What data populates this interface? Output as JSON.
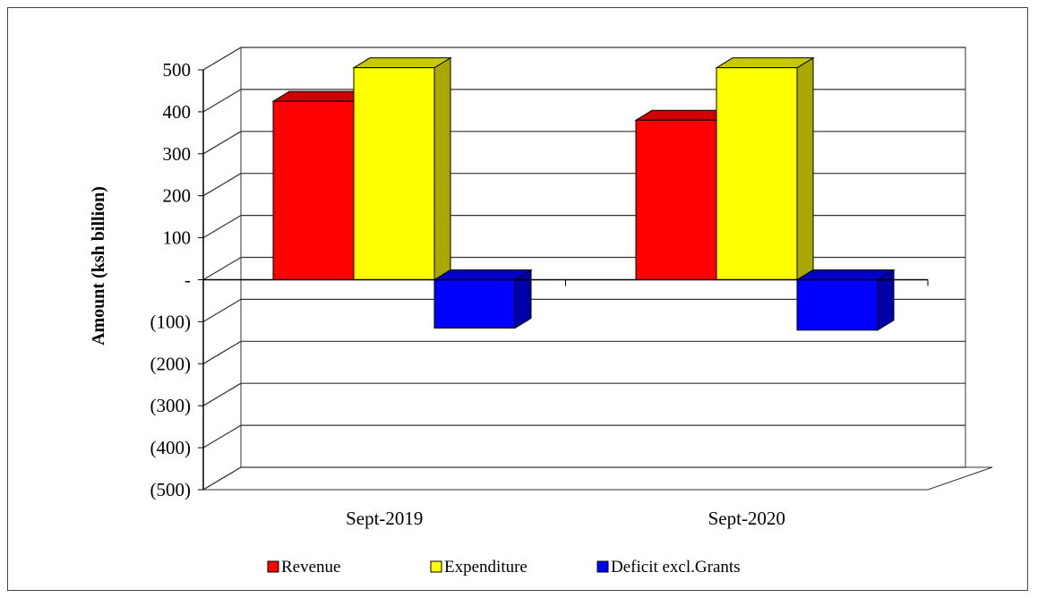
{
  "chart_data": {
    "type": "bar",
    "title": "",
    "xlabel": "",
    "ylabel": "Amount  (ksh billion)",
    "ylim": [
      -500,
      500
    ],
    "yticks": [
      500,
      400,
      300,
      200,
      100,
      0,
      -100,
      -200,
      -300,
      -400,
      -500
    ],
    "ytick_labels": [
      "500",
      "400",
      "300",
      "200",
      "100",
      "-",
      "(100)",
      "(200)",
      "(300)",
      "(400)",
      "(500)"
    ],
    "categories": [
      "Sept-2019",
      "Sept-2020"
    ],
    "series": [
      {
        "name": "Revenue",
        "values": [
          425,
          380
        ],
        "color": "#ff0000",
        "side_color": "#b00000",
        "top_color": "#d00000"
      },
      {
        "name": "Expenditure",
        "values": [
          505,
          505
        ],
        "color": "#ffff00",
        "side_color": "#a8a800",
        "top_color": "#c8c800"
      },
      {
        "name": "Deficit excl.Grants",
        "values": [
          -115,
          -120
        ],
        "color": "#0000ff",
        "side_color": "#0000a8",
        "top_color": "#0000c8"
      }
    ],
    "grid": true,
    "legend": "bottom",
    "style": "3d-clustered"
  }
}
